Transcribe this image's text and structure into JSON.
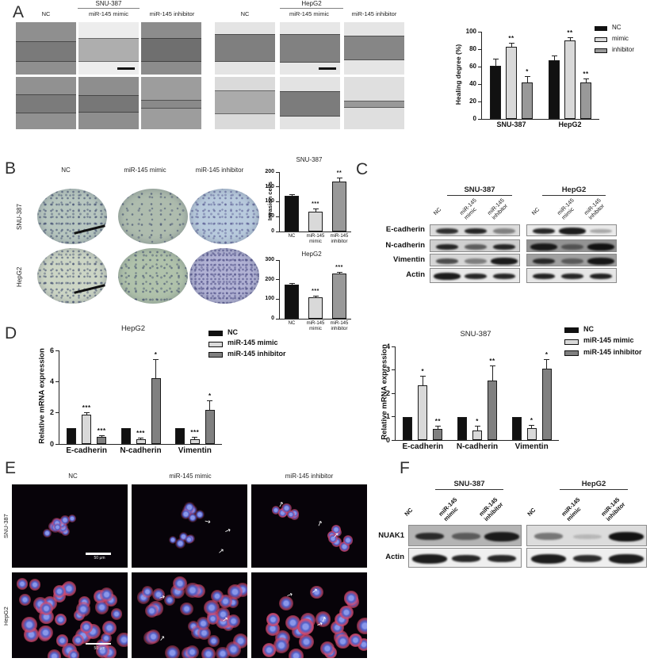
{
  "panelA": {
    "label": "A",
    "groups": [
      {
        "title": "SNU-387",
        "columns": [
          "NC",
          "miR-145 mimic",
          "miR-145 inhibitor"
        ]
      },
      {
        "title": "HepG2",
        "columns": [
          "NC",
          "miR-145 mimic",
          "miR-145 inhibitor"
        ]
      }
    ],
    "tiles": [
      {
        "base": "#8f8f8f",
        "tex": "dark",
        "band_top": 36,
        "band_h": 36,
        "band_color": "#7a7a7a",
        "scalebar": false
      },
      {
        "base": "#ededed",
        "tex": "bright",
        "band_top": 30,
        "band_h": 42,
        "band_color": "#aeaeae",
        "scalebar": true
      },
      {
        "base": "#8c8c8c",
        "tex": "dark",
        "band_top": 30,
        "band_h": 42,
        "band_color": "#6f6f6f",
        "scalebar": false
      },
      {
        "base": "#919191",
        "tex": "dark",
        "band_top": 33,
        "band_h": 34,
        "band_color": "#7b7b7b",
        "scalebar": false
      },
      {
        "base": "#8e8e8e",
        "tex": "dark",
        "band_top": 35,
        "band_h": 30,
        "band_color": "#777777",
        "scalebar": false
      },
      {
        "base": "#9d9d9d",
        "tex": "dark",
        "band_top": 44,
        "band_h": 14,
        "band_color": "#8a8a8a",
        "scalebar": false
      },
      {
        "base": "#e4e4e4",
        "tex": "bright",
        "band_top": 22,
        "band_h": 50,
        "band_color": "#7f7f7f",
        "scalebar": false
      },
      {
        "base": "#e7e7e7",
        "tex": "bright",
        "band_top": 22,
        "band_h": 52,
        "band_color": "#818181",
        "scalebar": true
      },
      {
        "base": "#e5e5e5",
        "tex": "bright",
        "band_top": 26,
        "band_h": 44,
        "band_color": "#868686",
        "scalebar": false
      },
      {
        "base": "#dadada",
        "tex": "bright",
        "band_top": 26,
        "band_h": 42,
        "band_color": "#ababab",
        "scalebar": false
      },
      {
        "base": "#e3e3e3",
        "tex": "bright",
        "band_top": 28,
        "band_h": 44,
        "band_color": "#7c7c7c",
        "scalebar": false
      },
      {
        "base": "#dfdfdf",
        "tex": "bright",
        "band_top": 46,
        "band_h": 10,
        "band_color": "#999999",
        "scalebar": false
      }
    ]
  },
  "panelB": {
    "label": "B",
    "columns": [
      "NC",
      "miR-145 mimic",
      "miR-145 inhibitor"
    ],
    "rows": [
      "SNU-387",
      "HepG2"
    ],
    "ovals": [
      {
        "base": "#b7c6bf",
        "density": "dense",
        "dot": "#2e3a64",
        "scalebar": true
      },
      {
        "base": "#aebcae",
        "density": "sparse",
        "dot": "#2e3a64",
        "scalebar": false
      },
      {
        "base": "#b8cadd",
        "density": "dense",
        "dot": "#4a4a86",
        "scalebar": false
      },
      {
        "base": "#ccd5c5",
        "density": "dense",
        "dot": "#2e3a64",
        "scalebar": true
      },
      {
        "base": "#b0c2ab",
        "density": "medium",
        "dot": "#2e3a64",
        "scalebar": false
      },
      {
        "base": "#b1b2d4",
        "density": "vdense",
        "dot": "#3c3c78",
        "scalebar": false
      }
    ]
  },
  "panelC": {
    "label": "C",
    "groups": [
      "SNU-387",
      "HepG2"
    ],
    "lanes": [
      "NC",
      "miR-145 mimic",
      "miR-145 inhibitor"
    ],
    "proteins": [
      "E-cadherin",
      "N-cadherin",
      "Vimentin",
      "Actin"
    ],
    "box_bg": {
      "snu": [
        "#dcdcdc",
        "#cfcfcf",
        "#d6d6d6",
        "#e8e8e8"
      ],
      "hep": [
        "#eaeaea",
        "#939393",
        "#a0a0a0",
        "#e6e6e6"
      ]
    },
    "band_intensity": {
      "snu": [
        [
          0.85,
          0.9,
          0.45
        ],
        [
          0.9,
          0.6,
          0.9
        ],
        [
          0.7,
          0.45,
          0.95
        ],
        [
          0.95,
          0.9,
          0.9
        ]
      ],
      "hep": [
        [
          0.9,
          0.95,
          0.3
        ],
        [
          0.95,
          0.5,
          1.0
        ],
        [
          0.85,
          0.5,
          0.97
        ],
        [
          0.92,
          0.9,
          0.92
        ]
      ]
    }
  },
  "panelD": {
    "label": "D"
  },
  "panelE": {
    "label": "E",
    "columns": [
      "NC",
      "miR-145 mimic",
      "miR-145 inhibitor"
    ],
    "rows": [
      "SNU-387",
      "HepG2"
    ],
    "scale_bar_text": "50 μm"
  },
  "panelF": {
    "label": "F",
    "groups": [
      "SNU-387",
      "HepG2"
    ],
    "lanes": [
      "NC",
      "miR-145 mimic",
      "miR-145 inhibitor"
    ],
    "proteins": [
      "NUAK1",
      "Actin"
    ],
    "box_bg": {
      "snu": [
        "#b4b4b4",
        "#efefef"
      ],
      "hep": [
        "#dcdcdc",
        "#efefef"
      ]
    },
    "band_intensity": {
      "snu": [
        [
          0.85,
          0.55,
          0.95
        ],
        [
          0.95,
          0.9,
          0.9
        ]
      ],
      "hep": [
        [
          0.5,
          0.18,
          1.0
        ],
        [
          0.95,
          0.88,
          0.95
        ]
      ]
    }
  },
  "chart_data": [
    {
      "id": "healing_degree",
      "type": "bar",
      "title": "",
      "xlabel": "",
      "ylabel": "Healing degree (%)",
      "ylim": [
        0,
        100
      ],
      "yticks": [
        0,
        20,
        40,
        60,
        80,
        100
      ],
      "grid": false,
      "categories": [
        "SNU-387",
        "HepG2"
      ],
      "series": [
        {
          "name": "NC",
          "color": "#111111",
          "values": [
            61,
            67
          ],
          "errors": [
            8,
            6
          ],
          "sig": [
            "",
            ""
          ]
        },
        {
          "name": "mimic",
          "color": "#d9d9d9",
          "values": [
            83,
            90
          ],
          "errors": [
            4,
            4
          ],
          "sig": [
            "**",
            "**"
          ]
        },
        {
          "name": "inhibitor",
          "color": "#999999",
          "values": [
            42,
            42
          ],
          "errors": [
            7,
            4
          ],
          "sig": [
            "*",
            "**"
          ]
        }
      ],
      "legend": [
        "NC",
        "mimic",
        "inhibitor"
      ],
      "legend_position": "right"
    },
    {
      "id": "invasion_snu387",
      "type": "bar",
      "title": "SNU-387",
      "xlabel": "",
      "ylabel": "Invasion cells",
      "ylim": [
        0,
        200
      ],
      "yticks": [
        0,
        50,
        100,
        150,
        200
      ],
      "grid": false,
      "categories": [
        "NC",
        "miR-145 mimic",
        "miR-145 inhibitor"
      ],
      "values": [
        120,
        68,
        168
      ],
      "errors": [
        5,
        10,
        14
      ],
      "sig": [
        "",
        "***",
        "**"
      ],
      "bar_colors": [
        "#111111",
        "#d9d9d9",
        "#999999"
      ]
    },
    {
      "id": "invasion_hepg2",
      "type": "bar",
      "title": "HepG2",
      "xlabel": "",
      "ylabel": "",
      "ylim": [
        0,
        300
      ],
      "yticks": [
        0,
        100,
        200,
        300
      ],
      "grid": false,
      "categories": [
        "NC",
        "miR-145 mimic",
        "miR-145 inhibitor"
      ],
      "values": [
        175,
        110,
        230
      ],
      "errors": [
        8,
        8,
        10
      ],
      "sig": [
        "",
        "***",
        "***"
      ],
      "bar_colors": [
        "#111111",
        "#d9d9d9",
        "#999999"
      ]
    },
    {
      "id": "mrna_hepg2",
      "type": "bar",
      "title": "HepG2",
      "xlabel": "",
      "ylabel": "Relative mRNA expression",
      "ylim": [
        0,
        6
      ],
      "yticks": [
        0,
        2,
        4,
        6
      ],
      "grid": false,
      "categories": [
        "E-cadherin",
        "N-cadherin",
        "Vimentin"
      ],
      "series": [
        {
          "name": "NC",
          "color": "#111111",
          "values": [
            1,
            1,
            1
          ],
          "errors": [
            0,
            0,
            0
          ],
          "sig": [
            "",
            "",
            ""
          ]
        },
        {
          "name": "miR-145 mimic",
          "color": "#d9d9d9",
          "values": [
            1.9,
            0.3,
            0.3
          ],
          "errors": [
            0.15,
            0.12,
            0.15
          ],
          "sig": [
            "***",
            "***",
            "***"
          ]
        },
        {
          "name": "miR-145 inhibitor",
          "color": "#808080",
          "values": [
            0.45,
            4.2,
            2.2
          ],
          "errors": [
            0.12,
            1.25,
            0.6
          ],
          "sig": [
            "***",
            "*",
            "*"
          ]
        }
      ],
      "legend": [
        "NC",
        "miR-145 mimic",
        "miR-145 inhibitor"
      ],
      "legend_position": "top-right"
    },
    {
      "id": "mrna_snu387",
      "type": "bar",
      "title": "SNU-387",
      "xlabel": "",
      "ylabel": "Relative mRNA expression",
      "ylim": [
        0,
        4
      ],
      "yticks": [
        0,
        1,
        2,
        3,
        4
      ],
      "grid": false,
      "categories": [
        "E-cadherin",
        "N-cadherin",
        "Vimentin"
      ],
      "series": [
        {
          "name": "NC",
          "color": "#111111",
          "values": [
            1,
            1,
            1
          ],
          "errors": [
            0,
            0,
            0
          ],
          "sig": [
            "",
            "",
            ""
          ]
        },
        {
          "name": "miR-145 mimic",
          "color": "#d9d9d9",
          "values": [
            2.35,
            0.42,
            0.5
          ],
          "errors": [
            0.4,
            0.18,
            0.15
          ],
          "sig": [
            "*",
            "*",
            "*"
          ]
        },
        {
          "name": "miR-145 inhibitor",
          "color": "#808080",
          "values": [
            0.48,
            2.55,
            3.05
          ],
          "errors": [
            0.12,
            0.65,
            0.42
          ],
          "sig": [
            "**",
            "**",
            "*"
          ]
        }
      ],
      "legend": [
        "NC",
        "miR-145 mimic",
        "miR-145 inhibitor"
      ],
      "legend_position": "top-right"
    }
  ]
}
